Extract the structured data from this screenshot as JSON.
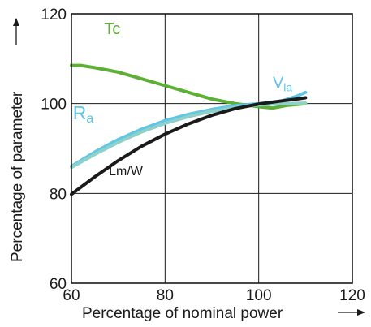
{
  "chart_data": {
    "type": "line",
    "xlabel": "Percentage of nominal power",
    "ylabel": "Percentage of parameter",
    "xlim": [
      60,
      120
    ],
    "ylim": [
      60,
      120
    ],
    "xticks": [
      60,
      80,
      100,
      120
    ],
    "yticks": [
      60,
      80,
      100,
      120
    ],
    "grid": true,
    "axis_arrows": true,
    "series": [
      {
        "name": "Tc",
        "color": "#5cb135",
        "label_parts": [
          {
            "text": "Tc",
            "sub": false
          }
        ],
        "points": [
          [
            60,
            108.5
          ],
          [
            62,
            108.5
          ],
          [
            65,
            108.0
          ],
          [
            70,
            107.0
          ],
          [
            75,
            105.5
          ],
          [
            80,
            104.0
          ],
          [
            85,
            102.5
          ],
          [
            90,
            101.0
          ],
          [
            95,
            100.0
          ],
          [
            100,
            99.3
          ],
          [
            103,
            99.0
          ],
          [
            106,
            99.6
          ],
          [
            110,
            100.0
          ]
        ]
      },
      {
        "name": "Vla",
        "color": "#5ec6e6",
        "label_parts": [
          {
            "text": "V",
            "sub": false
          },
          {
            "text": "la",
            "sub": true
          }
        ],
        "points": [
          [
            60,
            86.0
          ],
          [
            65,
            89.2
          ],
          [
            70,
            92.0
          ],
          [
            75,
            94.3
          ],
          [
            80,
            96.2
          ],
          [
            85,
            97.6
          ],
          [
            90,
            98.7
          ],
          [
            95,
            99.5
          ],
          [
            100,
            100.0
          ],
          [
            105,
            100.6
          ],
          [
            108,
            101.6
          ],
          [
            110,
            102.5
          ]
        ]
      },
      {
        "name": "Ra",
        "color": "#8fd1c8",
        "label_parts": [
          {
            "text": "R",
            "sub": false
          },
          {
            "text": "a",
            "sub": true
          }
        ],
        "points": [
          [
            60,
            85.8
          ],
          [
            65,
            88.7
          ],
          [
            70,
            91.4
          ],
          [
            75,
            93.7
          ],
          [
            80,
            95.6
          ],
          [
            85,
            97.1
          ],
          [
            90,
            98.3
          ],
          [
            95,
            99.1
          ],
          [
            100,
            99.7
          ],
          [
            105,
            100.0
          ],
          [
            110,
            100.1
          ]
        ]
      },
      {
        "name": "Lm/W",
        "color": "#1a1a1a",
        "label_parts": [
          {
            "text": "Lm/W",
            "sub": false
          }
        ],
        "points": [
          [
            60,
            79.8
          ],
          [
            65,
            83.7
          ],
          [
            70,
            87.3
          ],
          [
            75,
            90.5
          ],
          [
            80,
            93.2
          ],
          [
            85,
            95.5
          ],
          [
            90,
            97.4
          ],
          [
            95,
            98.9
          ],
          [
            100,
            99.9
          ],
          [
            105,
            100.6
          ],
          [
            108,
            101.0
          ],
          [
            110,
            101.3
          ]
        ]
      }
    ]
  }
}
